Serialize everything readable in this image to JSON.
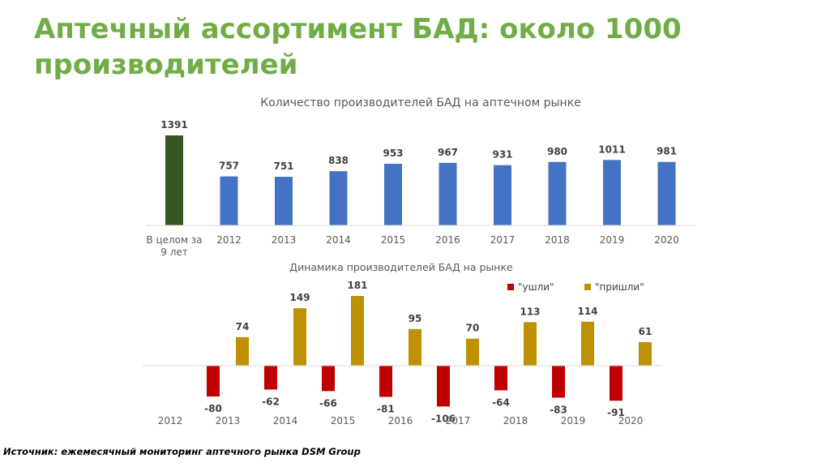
{
  "title": "Аптечный ассортимент БАД: около 1000 производителей",
  "source": "Источник: ежемесячный мониторинг аптечного рынка DSM Group",
  "chart_data": [
    {
      "type": "bar",
      "title": "Количество производителей БАД на аптечном рынке",
      "categories": [
        "В целом за 9 лет",
        "2012",
        "2013",
        "2014",
        "2015",
        "2016",
        "2017",
        "2018",
        "2019",
        "2020"
      ],
      "values": [
        1391,
        757,
        751,
        838,
        953,
        967,
        931,
        980,
        1011,
        981
      ],
      "ylim": [
        0,
        1391
      ],
      "grid": false,
      "colors": {
        "total": "#375623",
        "years": "#4472c4"
      }
    },
    {
      "type": "bar",
      "title": "Динамика производителей БАД на рынке",
      "categories": [
        "2012",
        "2013",
        "2014",
        "2015",
        "2016",
        "2017",
        "2018",
        "2019",
        "2020"
      ],
      "series": [
        {
          "name": "\"ушли\"",
          "values": [
            null,
            -80,
            -62,
            -66,
            -81,
            -106,
            -64,
            -83,
            -91
          ],
          "color": "#c00000"
        },
        {
          "name": "\"пришли\"",
          "values": [
            null,
            74,
            149,
            181,
            95,
            70,
            113,
            114,
            61
          ],
          "color": "#bf9000"
        }
      ],
      "ylim": [
        -106,
        181
      ],
      "legend": "top-right",
      "grid": false
    }
  ]
}
